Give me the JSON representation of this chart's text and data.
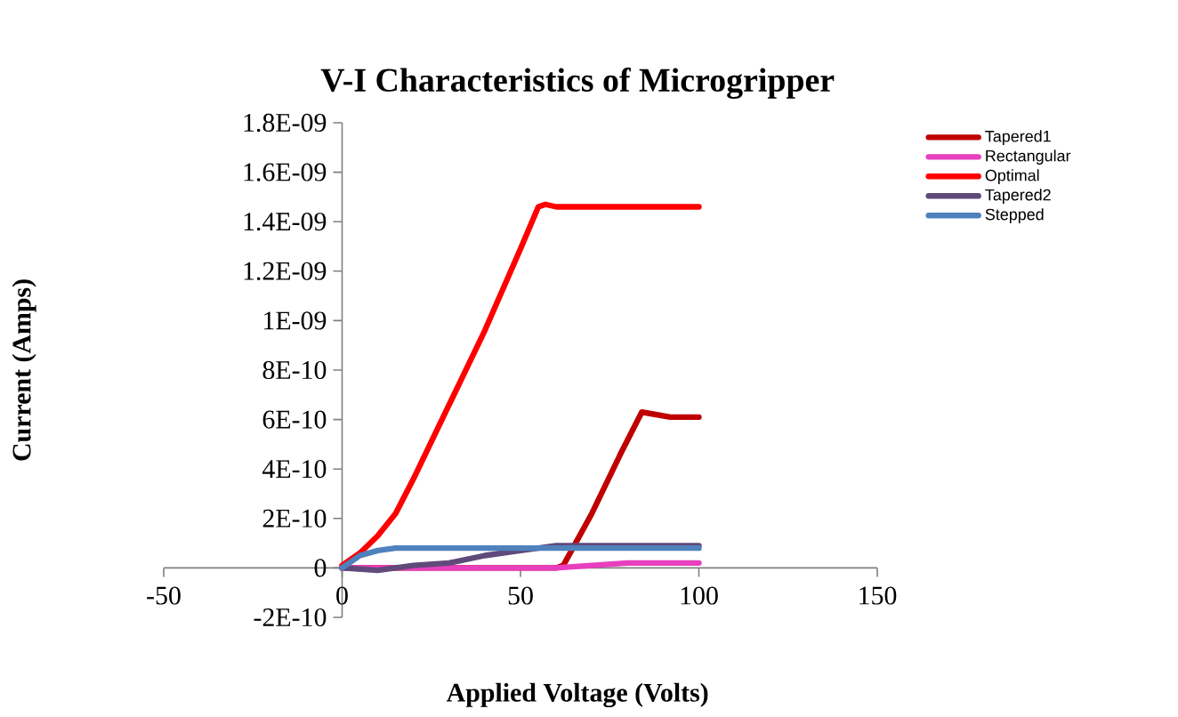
{
  "chart_data": {
    "type": "line",
    "title": "V-I Characteristics of Microgripper",
    "xlabel": "Applied Voltage (Volts)",
    "ylabel": "Current (Amps)",
    "xlim": [
      -50,
      150
    ],
    "xticks": [
      -50,
      0,
      50,
      100,
      150
    ],
    "ylim": [
      -2e-10,
      1.8e-09
    ],
    "yticks": [
      {
        "value": -2e-10,
        "label": "-2E-10"
      },
      {
        "value": 0,
        "label": "0"
      },
      {
        "value": 2e-10,
        "label": "2E-10"
      },
      {
        "value": 4e-10,
        "label": "4E-10"
      },
      {
        "value": 6e-10,
        "label": "6E-10"
      },
      {
        "value": 8e-10,
        "label": "8E-10"
      },
      {
        "value": 1e-09,
        "label": "1E-09"
      },
      {
        "value": 1.2e-09,
        "label": "1.2E-09"
      },
      {
        "value": 1.4e-09,
        "label": "1.4E-09"
      },
      {
        "value": 1.6e-09,
        "label": "1.6E-09"
      },
      {
        "value": 1.8e-09,
        "label": "1.8E-09"
      }
    ],
    "legend": "top right",
    "grid": false,
    "series": [
      {
        "name": "Tapered1",
        "color": "#c00000",
        "x": [
          0,
          20,
          40,
          60,
          62,
          70,
          78,
          84,
          88,
          92,
          100
        ],
        "values": [
          0,
          0,
          0,
          0,
          1e-11,
          2.2e-10,
          4.6e-10,
          6.3e-10,
          6.2e-10,
          6.1e-10,
          6.1e-10
        ]
      },
      {
        "name": "Rectangular",
        "color": "#e83fbf",
        "x": [
          0,
          20,
          40,
          60,
          70,
          80,
          90,
          100
        ],
        "values": [
          0,
          0,
          0,
          0,
          1e-11,
          2e-11,
          2e-11,
          2e-11
        ]
      },
      {
        "name": "Optimal",
        "color": "#ff0000",
        "x": [
          0,
          5,
          10,
          15,
          20,
          30,
          40,
          50,
          55,
          57,
          60,
          70,
          80,
          90,
          100
        ],
        "values": [
          1e-11,
          6e-11,
          1.3e-10,
          2.2e-10,
          3.6e-10,
          6.6e-10,
          9.6e-10,
          1.29e-09,
          1.46e-09,
          1.47e-09,
          1.46e-09,
          1.46e-09,
          1.46e-09,
          1.46e-09,
          1.46e-09
        ]
      },
      {
        "name": "Tapered2",
        "color": "#604a7b",
        "x": [
          0,
          10,
          20,
          30,
          40,
          50,
          60,
          70,
          80,
          90,
          100
        ],
        "values": [
          0,
          -1e-11,
          1e-11,
          2e-11,
          5e-11,
          7e-11,
          9e-11,
          9e-11,
          9e-11,
          9e-11,
          9e-11
        ]
      },
      {
        "name": "Stepped",
        "color": "#4f81bd",
        "x": [
          0,
          5,
          10,
          15,
          20,
          30,
          40,
          50,
          60,
          70,
          80,
          90,
          100
        ],
        "values": [
          0,
          5e-11,
          7e-11,
          8e-11,
          8e-11,
          8e-11,
          8e-11,
          8e-11,
          8e-11,
          8e-11,
          8e-11,
          8e-11,
          8e-11
        ]
      }
    ]
  }
}
